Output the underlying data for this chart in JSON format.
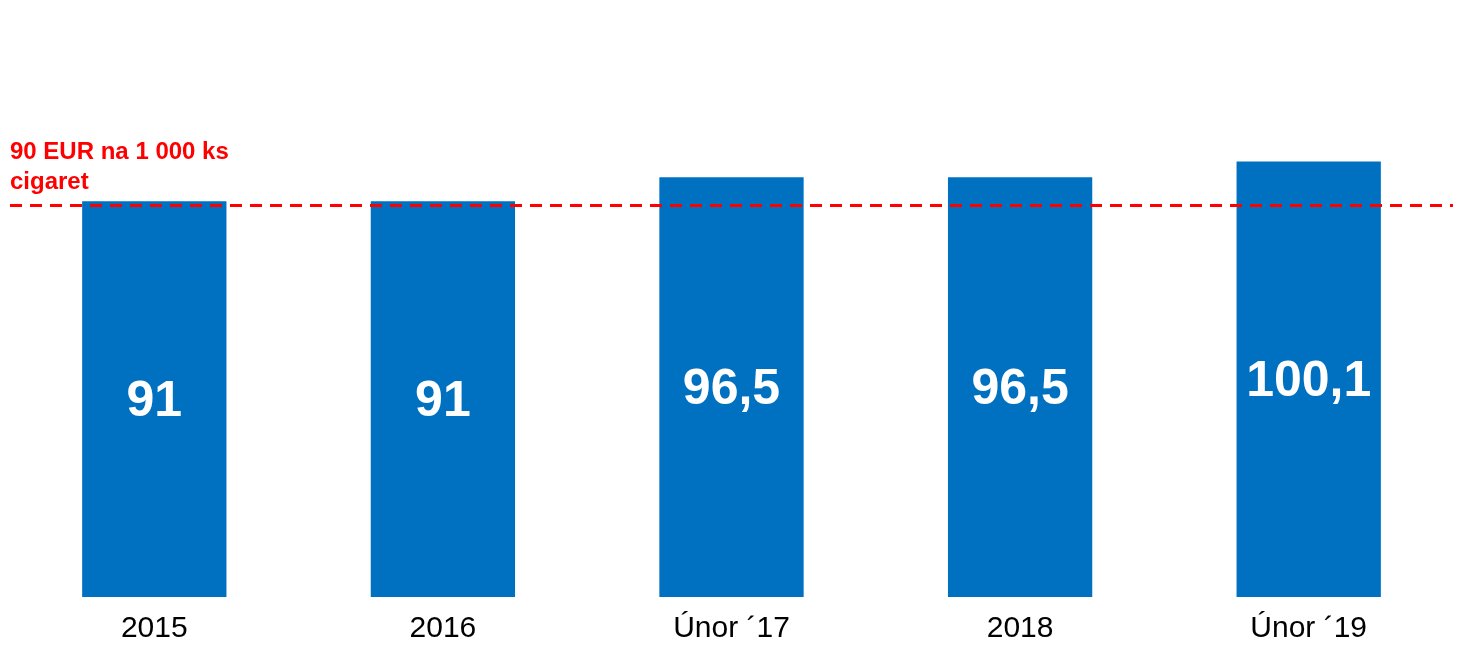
{
  "chart_data": {
    "type": "bar",
    "categories": [
      "2015",
      "2016",
      "Únor ´17",
      "2018",
      "Únor ´19"
    ],
    "values": [
      91,
      91,
      96.5,
      96.5,
      100.1
    ],
    "value_labels": [
      "91",
      "91",
      "96,5",
      "96,5",
      "100,1"
    ],
    "color": "#0070c0",
    "ref_lines": [
      {
        "axis": "y",
        "value": 90,
        "label": "90 EUR na 1 000 ks cigaret",
        "color": "#ff0000",
        "line_style": "dashed"
      }
    ]
  }
}
